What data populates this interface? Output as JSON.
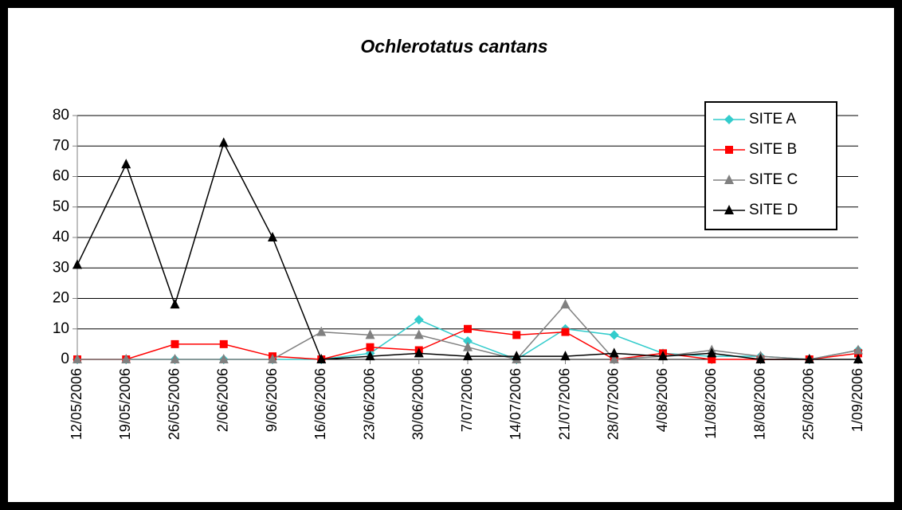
{
  "chart_data": {
    "type": "line",
    "title": "Ochlerotatus cantans",
    "categories": [
      "12/05/2006",
      "19/05/2006",
      "26/05/2006",
      "2/06/2006",
      "9/06/2006",
      "16/06/2006",
      "23/06/2006",
      "30/06/2006",
      "7/07/2006",
      "14/07/2006",
      "21/07/2006",
      "28/07/2006",
      "4/08/2006",
      "11/08/2006",
      "18/08/2006",
      "25/08/2006",
      "1/09/2006"
    ],
    "series": [
      {
        "name": "SITE A",
        "color": "#33cccc",
        "marker": "diamond",
        "values": [
          0,
          0,
          0,
          0,
          0,
          0,
          2,
          13,
          6,
          0,
          10,
          8,
          2,
          1,
          1,
          0,
          3
        ]
      },
      {
        "name": "SITE B",
        "color": "#ff0000",
        "marker": "square",
        "values": [
          0,
          0,
          5,
          5,
          1,
          0,
          4,
          3,
          10,
          8,
          9,
          0,
          2,
          0,
          0,
          0,
          2
        ]
      },
      {
        "name": "SITE C",
        "color": "#808080",
        "marker": "triangle",
        "values": [
          0,
          0,
          0,
          0,
          0,
          9,
          8,
          8,
          4,
          0,
          18,
          0,
          1,
          3,
          1,
          0,
          3
        ]
      },
      {
        "name": "SITE D",
        "color": "#000000",
        "marker": "triangle",
        "values": [
          31,
          64,
          18,
          71,
          40,
          0,
          1,
          2,
          1,
          1,
          1,
          2,
          1,
          2,
          0,
          0,
          0
        ]
      }
    ],
    "ylim": [
      0,
      80
    ],
    "yticks": [
      0,
      10,
      20,
      30,
      40,
      50,
      60,
      70,
      80
    ],
    "grid": true,
    "legend": "upper right"
  }
}
